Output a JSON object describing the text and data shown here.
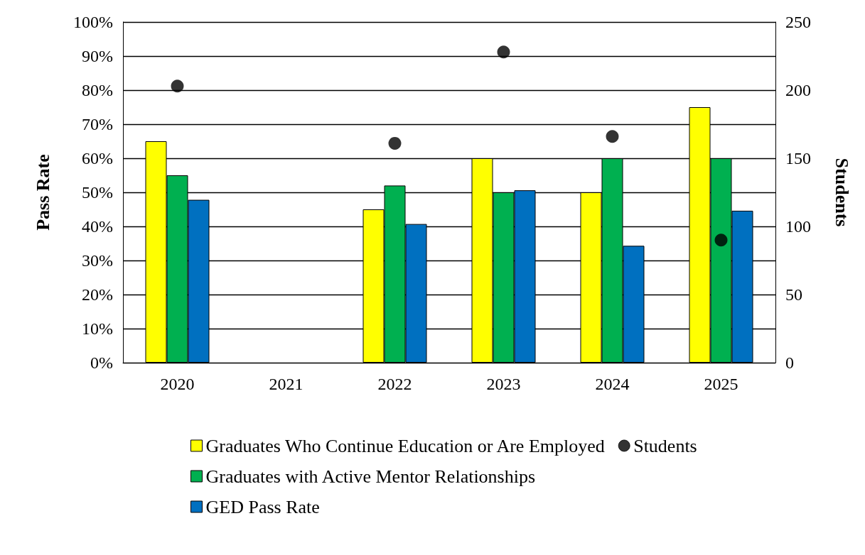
{
  "chart_data": {
    "type": "bar",
    "categories": [
      "2020",
      "2021",
      "2022",
      "2023",
      "2024",
      "2025"
    ],
    "ylabel": "Pass Rate",
    "y2label": "Students",
    "ylim": [
      0,
      100
    ],
    "yticks": [
      {
        "value": 0,
        "label": "0%"
      },
      {
        "value": 10,
        "label": "10%"
      },
      {
        "value": 20,
        "label": "20%"
      },
      {
        "value": 30,
        "label": "30%"
      },
      {
        "value": 40,
        "label": "40%"
      },
      {
        "value": 50,
        "label": "50%"
      },
      {
        "value": 60,
        "label": "60%"
      },
      {
        "value": 70,
        "label": "70%"
      },
      {
        "value": 80,
        "label": "80%"
      },
      {
        "value": 90,
        "label": "90%"
      },
      {
        "value": 100,
        "label": "100%"
      }
    ],
    "y2lim": [
      0,
      250
    ],
    "y2ticks": [
      0,
      50,
      100,
      150,
      200,
      250
    ],
    "grid": "y",
    "legend": "bottom",
    "marker": "circle",
    "series": [
      {
        "name": "Graduates Who Continue Education or Are Employed",
        "color": "#ffff00",
        "values": [
          65,
          null,
          45,
          60,
          50,
          75
        ]
      },
      {
        "name": "Graduates with Active Mentor Relationships",
        "color": "#00b050",
        "values": [
          55,
          null,
          52,
          50,
          60,
          60
        ]
      },
      {
        "name": "GED Pass Rate",
        "color": "#0070c0",
        "values": [
          47.8,
          null,
          40.7,
          50.6,
          34.3,
          44.6
        ]
      },
      {
        "name": "Students",
        "type": "scatter",
        "axis": "y2",
        "color": "#000000",
        "values": [
          203,
          null,
          161,
          228,
          166,
          90
        ]
      }
    ]
  }
}
